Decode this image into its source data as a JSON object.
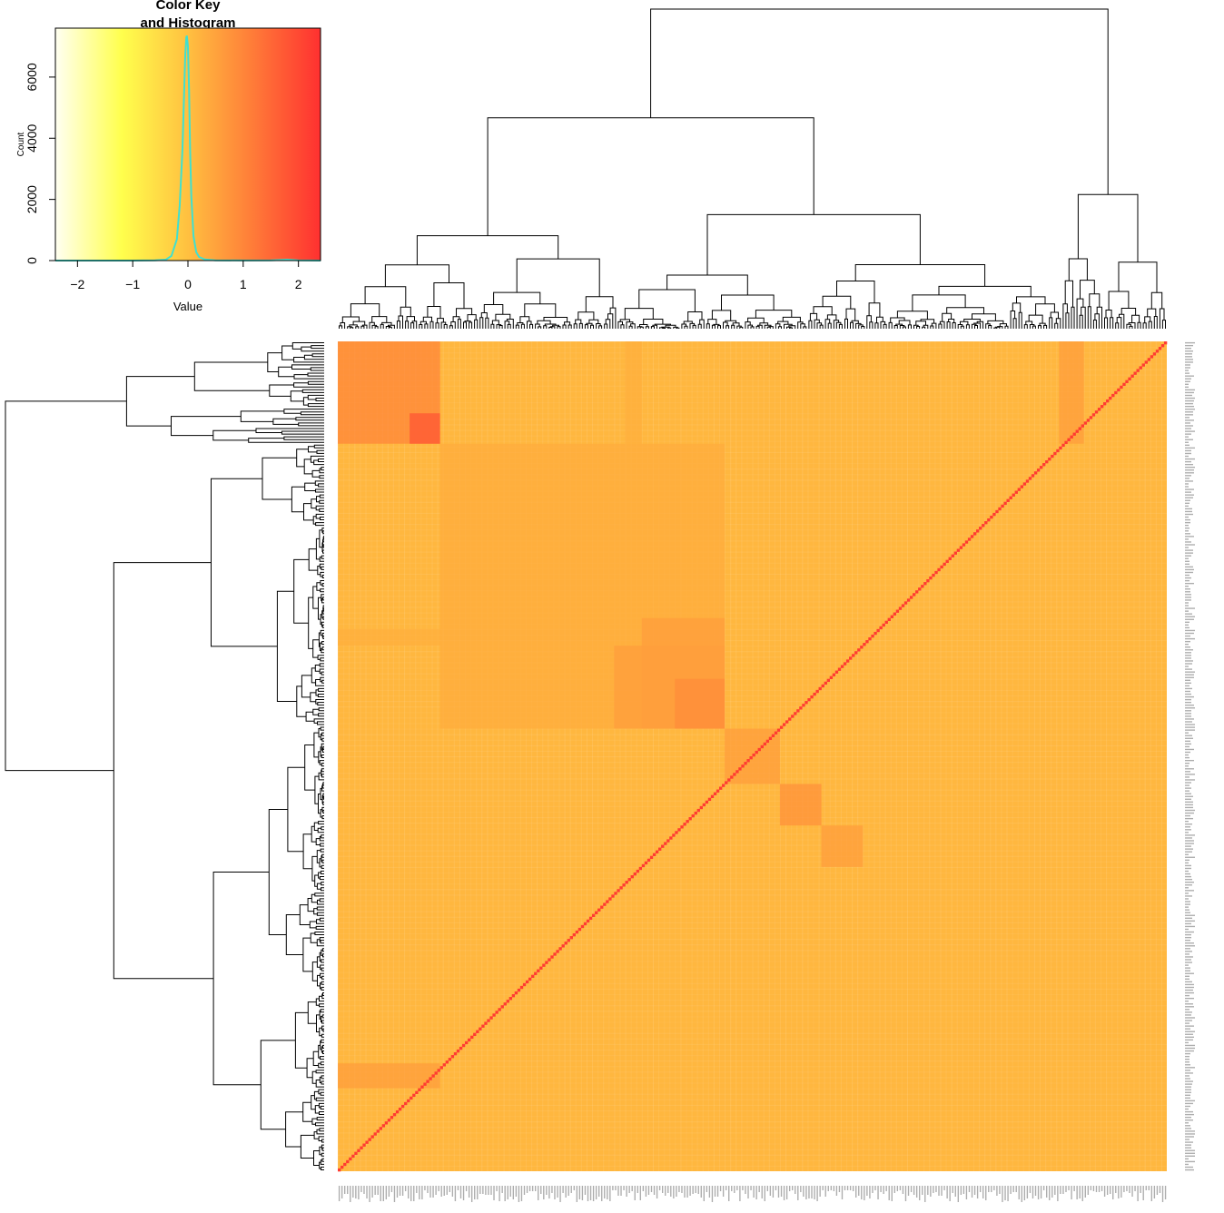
{
  "colors": {
    "key_gradient": [
      "#fffff2",
      "#ffff4d",
      "#ffc040",
      "#ff7a38",
      "#ff3030"
    ],
    "heatmap_base": "#fdb936",
    "heatmap_block": "#f88a2a",
    "heatmap_diag": "#f23423",
    "histogram_line": "#40e0d0",
    "dendrogram": "#000000"
  },
  "chart_data": [
    {
      "type": "histogram",
      "title_line1": "Color Key",
      "title_line2": "and Histogram",
      "xlabel": "Value",
      "ylabel": "Count",
      "xlim": [
        -2.4,
        2.4
      ],
      "ylim": [
        0,
        7600
      ],
      "xticks": [
        -2,
        -1,
        0,
        1,
        2
      ],
      "xtick_labels": [
        "−2",
        "−1",
        "0",
        "1",
        "2"
      ],
      "yticks": [
        0,
        2000,
        4000,
        6000
      ],
      "ytick_labels": [
        "0",
        "2000",
        "4000",
        "6000"
      ],
      "density_x": [
        -2.4,
        -1.0,
        -0.6,
        -0.4,
        -0.3,
        -0.2,
        -0.15,
        -0.1,
        -0.07,
        -0.05,
        -0.03,
        -0.02,
        0.0,
        0.02,
        0.04,
        0.06,
        0.1,
        0.15,
        0.2,
        0.3,
        0.5,
        1.0,
        1.5,
        1.8,
        2.0,
        2.4
      ],
      "density_y": [
        0,
        0,
        5,
        30,
        150,
        700,
        1800,
        3600,
        5400,
        6700,
        7300,
        7350,
        7000,
        5600,
        3600,
        2100,
        800,
        280,
        120,
        40,
        10,
        3,
        5,
        30,
        5,
        0
      ]
    },
    {
      "type": "heatmap",
      "n": 300,
      "value_range": [
        -2.4,
        2.4
      ],
      "base_value": 0.0,
      "diagonal_value": 2.2,
      "blocks": [
        {
          "rows": [
            0,
            37
          ],
          "cols": [
            0,
            37
          ],
          "value": 1.0
        },
        {
          "rows": [
            26,
            37
          ],
          "cols": [
            26,
            37
          ],
          "value": 1.8
        },
        {
          "rows": [
            37,
            140
          ],
          "cols": [
            37,
            140
          ],
          "value": 0.35
        },
        {
          "rows": [
            100,
            140
          ],
          "cols": [
            110,
            140
          ],
          "value": 0.6
        },
        {
          "rows": [
            122,
            140
          ],
          "cols": [
            122,
            140
          ],
          "value": 0.9
        },
        {
          "rows": [
            140,
            160
          ],
          "cols": [
            140,
            160
          ],
          "value": 0.6
        },
        {
          "rows": [
            160,
            175
          ],
          "cols": [
            160,
            175
          ],
          "value": 0.8
        },
        {
          "rows": [
            175,
            190
          ],
          "cols": [
            175,
            190
          ],
          "value": 0.6
        },
        {
          "rows": [
            0,
            37
          ],
          "cols": [
            104,
            110
          ],
          "value": 0.3
        },
        {
          "rows": [
            0,
            37
          ],
          "cols": [
            261,
            270
          ],
          "value": 0.6
        }
      ],
      "n_col_labels": 300,
      "n_row_labels": 300
    }
  ]
}
